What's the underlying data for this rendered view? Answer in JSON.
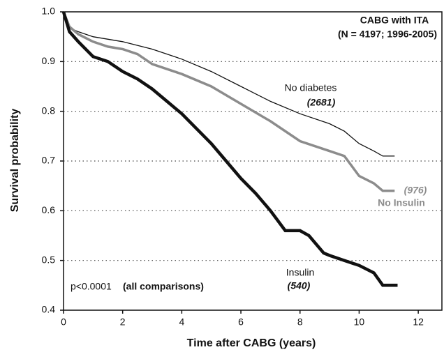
{
  "chart_data": {
    "type": "line",
    "x_label": "Time after CABG  (years)",
    "y_label": "Survival probability",
    "title": "CABG with ITA",
    "subtitle": "(N = 4197; 1996-2005)",
    "xlim": [
      0,
      12.8
    ],
    "ylim": [
      0.4,
      1.0
    ],
    "xticks": [
      0,
      2,
      4,
      6,
      8,
      10,
      12
    ],
    "yticks": [
      0.4,
      0.5,
      0.6,
      0.7,
      0.8,
      0.9,
      {
        "value": 1,
        "label": "1.0"
      }
    ],
    "grid": true,
    "series": [
      {
        "name": "No diabetes",
        "n_label": "(2681)",
        "color": "#111111",
        "width": 1.3,
        "x": [
          0,
          0.1,
          0.3,
          0.5,
          1,
          2,
          3,
          4,
          5,
          6,
          7,
          8,
          9,
          9.5,
          10,
          10.5,
          10.8,
          11.2
        ],
        "values": [
          1.0,
          0.98,
          0.965,
          0.96,
          0.95,
          0.94,
          0.925,
          0.905,
          0.88,
          0.85,
          0.82,
          0.795,
          0.775,
          0.76,
          0.735,
          0.72,
          0.71,
          0.71
        ]
      },
      {
        "name": "No Insulin",
        "n_label": "(976)",
        "color": "#8c8c8c",
        "width": 3.5,
        "x": [
          0,
          0.2,
          0.5,
          1,
          1.5,
          2,
          2.5,
          3,
          4,
          5,
          6,
          7,
          8,
          9,
          9.5,
          10,
          10.5,
          10.8,
          11.2
        ],
        "values": [
          1.0,
          0.97,
          0.955,
          0.94,
          0.93,
          0.925,
          0.915,
          0.895,
          0.875,
          0.85,
          0.815,
          0.78,
          0.74,
          0.72,
          0.71,
          0.67,
          0.655,
          0.64,
          0.64
        ]
      },
      {
        "name": "Insulin",
        "n_label": "(540)",
        "color": "#111111",
        "width": 4.5,
        "x": [
          0,
          0.2,
          0.5,
          1,
          1.5,
          2,
          2.5,
          3,
          3.5,
          4,
          4.5,
          5,
          5.5,
          6,
          6.5,
          7,
          7.5,
          8,
          8.3,
          8.8,
          9,
          9.5,
          10,
          10.5,
          10.8,
          11.3
        ],
        "values": [
          1.0,
          0.96,
          0.94,
          0.91,
          0.9,
          0.88,
          0.865,
          0.845,
          0.82,
          0.795,
          0.765,
          0.735,
          0.7,
          0.665,
          0.635,
          0.6,
          0.56,
          0.56,
          0.55,
          0.515,
          0.51,
          0.5,
          0.49,
          0.475,
          0.45,
          0.45
        ]
      }
    ],
    "annotations": [
      "p<0.0001",
      "(all comparisons)"
    ]
  }
}
